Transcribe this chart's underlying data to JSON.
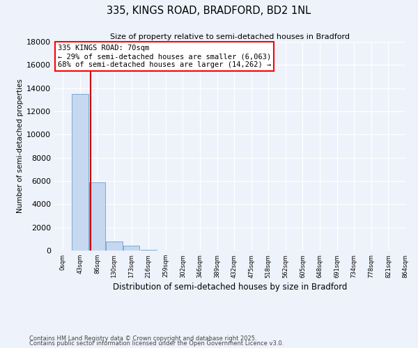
{
  "title": "335, KINGS ROAD, BRADFORD, BD2 1NL",
  "subtitle": "Size of property relative to semi-detached houses in Bradford",
  "xlabel": "Distribution of semi-detached houses by size in Bradford",
  "ylabel": "Number of semi-detached properties",
  "bar_values": [
    30,
    13500,
    5900,
    800,
    400,
    80,
    20,
    5,
    2,
    1,
    0,
    0,
    0,
    0,
    0,
    0,
    0,
    0,
    0,
    0
  ],
  "bin_labels": [
    "0sqm",
    "43sqm",
    "86sqm",
    "130sqm",
    "173sqm",
    "216sqm",
    "259sqm",
    "302sqm",
    "346sqm",
    "389sqm",
    "432sqm",
    "475sqm",
    "518sqm",
    "562sqm",
    "605sqm",
    "648sqm",
    "691sqm",
    "734sqm",
    "778sqm",
    "821sqm",
    "864sqm"
  ],
  "bar_color": "#c5d8f0",
  "bar_edgecolor": "#7aaad4",
  "property_line_x": 1.63,
  "property_label": "335 KINGS ROAD: 70sqm",
  "annotation_line1": "← 29% of semi-detached houses are smaller (6,063)",
  "annotation_line2": "68% of semi-detached houses are larger (14,262) →",
  "ylim": [
    0,
    18000
  ],
  "yticks": [
    0,
    2000,
    4000,
    6000,
    8000,
    10000,
    12000,
    14000,
    16000,
    18000
  ],
  "vline_color": "#cc0000",
  "footer1": "Contains HM Land Registry data © Crown copyright and database right 2025.",
  "footer2": "Contains public sector information licensed under the Open Government Licence v3.0.",
  "bg_color": "#eef2fb",
  "plot_bg_color": "#eef2fb"
}
